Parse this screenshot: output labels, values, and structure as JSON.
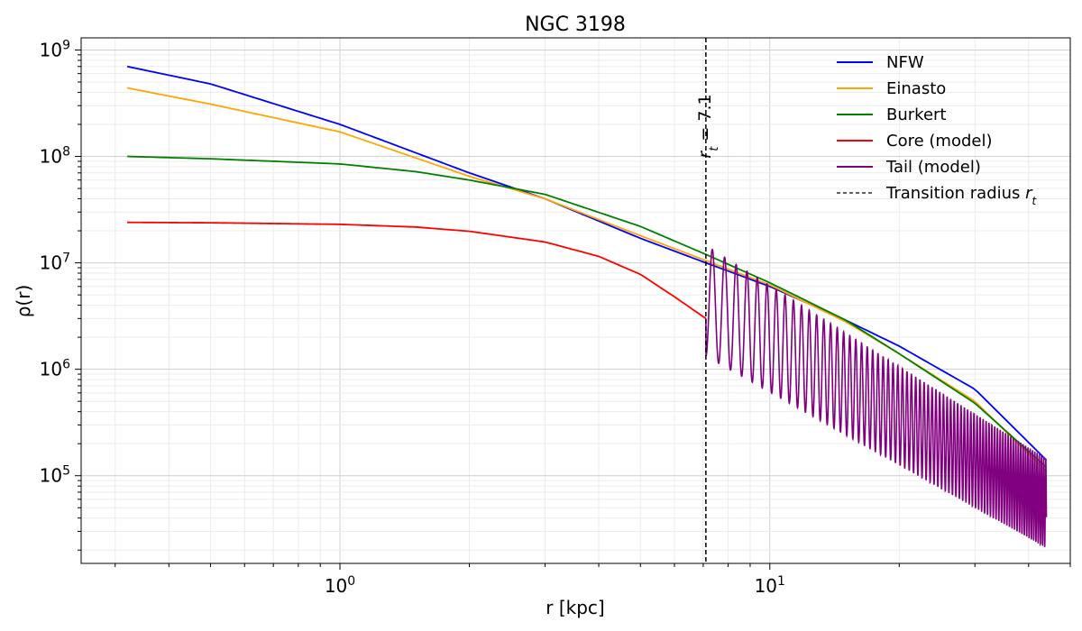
{
  "chart_data": {
    "type": "line",
    "title": "NGC 3198",
    "xlabel": "r [kpc]",
    "ylabel": "ρ(r)",
    "xscale": "log",
    "yscale": "log",
    "xlim": [
      0.25,
      50
    ],
    "ylim": [
      15000,
      1300000000
    ],
    "grid": true,
    "legend_position": "top-right",
    "x_ticks": [
      {
        "value": 1,
        "base": "10",
        "exp": "0"
      },
      {
        "value": 10,
        "base": "10",
        "exp": "1"
      }
    ],
    "y_ticks": [
      {
        "value": 100000,
        "base": "10",
        "exp": "5"
      },
      {
        "value": 1000000,
        "base": "10",
        "exp": "6"
      },
      {
        "value": 10000000,
        "base": "10",
        "exp": "7"
      },
      {
        "value": 100000000,
        "base": "10",
        "exp": "8"
      },
      {
        "value": 1000000000,
        "base": "10",
        "exp": "9"
      }
    ],
    "transition_radius": 7.1,
    "annotation": {
      "symbol": "r",
      "subscript": "t",
      "text": " = 7.1"
    },
    "series": [
      {
        "name": "NFW",
        "color": "#0000ff",
        "points": [
          [
            0.32,
            700000000
          ],
          [
            0.5,
            480000000
          ],
          [
            1,
            200000000
          ],
          [
            2,
            70000000
          ],
          [
            3,
            40000000
          ],
          [
            5,
            17000000
          ],
          [
            7.1,
            10000000
          ],
          [
            10,
            6000000
          ],
          [
            15,
            2900000
          ],
          [
            20,
            1650000
          ],
          [
            30,
            650000
          ],
          [
            44,
            140000
          ]
        ]
      },
      {
        "name": "Einasto",
        "color": "#ffa500",
        "points": [
          [
            0.32,
            440000000
          ],
          [
            0.5,
            310000000
          ],
          [
            1,
            170000000
          ],
          [
            2,
            65000000
          ],
          [
            3,
            40000000
          ],
          [
            5,
            18000000
          ],
          [
            7.1,
            10500000
          ],
          [
            10,
            6200000
          ],
          [
            15,
            2800000
          ],
          [
            20,
            1400000
          ],
          [
            30,
            500000
          ],
          [
            44,
            110000
          ]
        ]
      },
      {
        "name": "Burkert",
        "color": "#008000",
        "points": [
          [
            0.32,
            100000000
          ],
          [
            0.5,
            95000000
          ],
          [
            1,
            85000000
          ],
          [
            1.5,
            72000000
          ],
          [
            2,
            60000000
          ],
          [
            3,
            44000000
          ],
          [
            5,
            22000000
          ],
          [
            7.1,
            12000000
          ],
          [
            10,
            6500000
          ],
          [
            15,
            2900000
          ],
          [
            20,
            1400000
          ],
          [
            30,
            480000
          ],
          [
            44,
            120000
          ]
        ]
      },
      {
        "name": "Core (model)",
        "color": "#ff0000",
        "points": [
          [
            0.32,
            24000000
          ],
          [
            0.5,
            23800000
          ],
          [
            1,
            23000000
          ],
          [
            1.5,
            21700000
          ],
          [
            2,
            19800000
          ],
          [
            3,
            15700000
          ],
          [
            4,
            11500000
          ],
          [
            5,
            7800000
          ],
          [
            6,
            4800000
          ],
          [
            7.1,
            3000000
          ]
        ]
      },
      {
        "name": "Tail (model)",
        "color": "#800080",
        "points": [
          [
            7.1,
            3000000
          ],
          [
            44,
            45000
          ]
        ]
      },
      {
        "name": "Transition radius r_t",
        "label": "Transition radius",
        "label_sub": "t",
        "color": "#000000",
        "style": "dashed"
      }
    ]
  }
}
